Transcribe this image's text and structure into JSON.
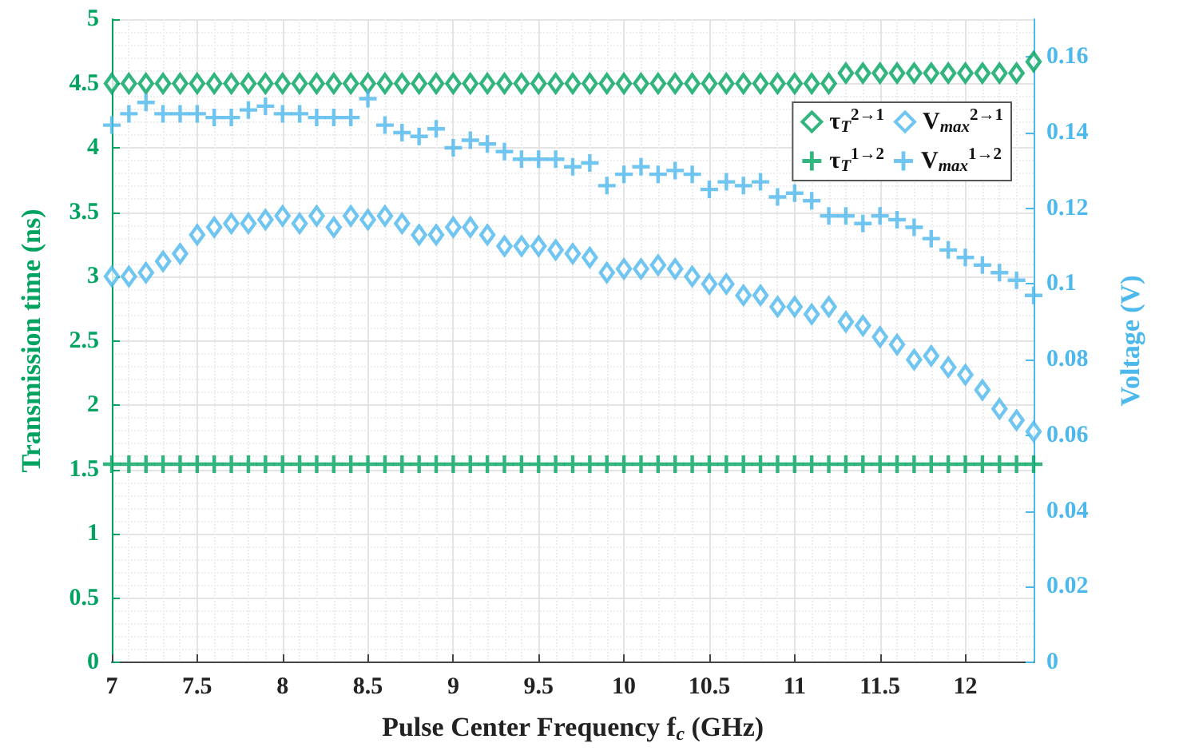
{
  "chart_data": {
    "type": "scatter",
    "xlabel": "Pulse Center Frequency f$_{c}$ (GHz)",
    "ylabel": "Transmission time (ns)",
    "y2label": "Voltage (V)",
    "x": [
      7.0,
      7.1,
      7.2,
      7.3,
      7.4,
      7.5,
      7.6,
      7.7,
      7.8,
      7.9,
      8.0,
      8.1,
      8.2,
      8.3,
      8.4,
      8.5,
      8.6,
      8.7,
      8.8,
      8.9,
      9.0,
      9.1,
      9.2,
      9.3,
      9.4,
      9.5,
      9.6,
      9.7,
      9.8,
      9.9,
      10.0,
      10.1,
      10.2,
      10.3,
      10.4,
      10.5,
      10.6,
      10.7,
      10.8,
      10.9,
      11.0,
      11.1,
      11.2,
      11.3,
      11.4,
      11.5,
      11.6,
      11.7,
      11.8,
      11.9,
      12.0,
      12.1,
      12.2,
      12.3,
      12.4
    ],
    "xlim": [
      7,
      12.4
    ],
    "xticks": [
      7,
      7.5,
      8,
      8.5,
      9,
      9.5,
      10,
      10.5,
      11,
      11.5,
      12
    ],
    "ylim": [
      0,
      5
    ],
    "yticks": [
      0,
      0.5,
      1,
      1.5,
      2,
      2.5,
      3,
      3.5,
      4,
      4.5,
      5
    ],
    "y2lim": [
      0,
      0.17
    ],
    "y2ticks": [
      0,
      0.02,
      0.04,
      0.06,
      0.08,
      0.1,
      0.12,
      0.14,
      0.16
    ],
    "grid": true,
    "legend": "top right",
    "series": [
      {
        "name": "τ$_{T}$$^{2→1}$",
        "color": "#00a360",
        "marker": "diamond",
        "values": [
          4.5,
          4.5,
          4.5,
          4.5,
          4.5,
          4.5,
          4.5,
          4.5,
          4.5,
          4.5,
          4.5,
          4.5,
          4.5,
          4.5,
          4.5,
          4.5,
          4.5,
          4.5,
          4.5,
          4.5,
          4.5,
          4.5,
          4.5,
          4.5,
          4.5,
          4.5,
          4.5,
          4.5,
          4.5,
          4.5,
          4.5,
          4.5,
          4.5,
          4.5,
          4.5,
          4.5,
          4.5,
          4.5,
          4.5,
          4.5,
          4.5,
          4.5,
          4.5,
          4.58,
          4.58,
          4.58,
          4.58,
          4.58,
          4.58,
          4.58,
          4.58,
          4.58,
          4.58,
          4.58,
          4.67
        ]
      },
      {
        "name": "V$_{max}$$^{2→1}$",
        "color": "#4cb8ec",
        "marker": "diamond",
        "axis": "y2",
        "values": [
          0.102,
          0.102,
          0.103,
          0.106,
          0.108,
          0.113,
          0.115,
          0.116,
          0.116,
          0.117,
          0.118,
          0.116,
          0.118,
          0.115,
          0.118,
          0.117,
          0.118,
          0.116,
          0.113,
          0.113,
          0.115,
          0.115,
          0.113,
          0.11,
          0.11,
          0.11,
          0.109,
          0.108,
          0.107,
          0.103,
          0.104,
          0.104,
          0.105,
          0.104,
          0.102,
          0.1,
          0.1,
          0.097,
          0.097,
          0.094,
          0.094,
          0.092,
          0.094,
          0.09,
          0.089,
          0.086,
          0.084,
          0.08,
          0.081,
          0.078,
          0.076,
          0.072,
          0.067,
          0.064,
          0.061
        ]
      },
      {
        "name": "τ$_{T}$$^{1→2}$",
        "color": "#00a360",
        "marker": "cross",
        "values": [
          1.54,
          1.54,
          1.54,
          1.54,
          1.54,
          1.54,
          1.54,
          1.54,
          1.54,
          1.54,
          1.54,
          1.54,
          1.54,
          1.54,
          1.54,
          1.54,
          1.54,
          1.54,
          1.54,
          1.54,
          1.54,
          1.54,
          1.54,
          1.54,
          1.54,
          1.54,
          1.54,
          1.54,
          1.54,
          1.54,
          1.54,
          1.54,
          1.54,
          1.54,
          1.54,
          1.54,
          1.54,
          1.54,
          1.54,
          1.54,
          1.54,
          1.54,
          1.54,
          1.54,
          1.54,
          1.54,
          1.54,
          1.54,
          1.54,
          1.54,
          1.54,
          1.54,
          1.54,
          1.54,
          1.54
        ]
      },
      {
        "name": "V$_{max}$$^{1→2}$",
        "color": "#4cb8ec",
        "marker": "cross",
        "axis": "y2",
        "values": [
          0.142,
          0.145,
          0.148,
          0.145,
          0.145,
          0.145,
          0.144,
          0.144,
          0.146,
          0.147,
          0.145,
          0.145,
          0.144,
          0.144,
          0.144,
          0.149,
          0.142,
          0.14,
          0.139,
          0.141,
          0.136,
          0.138,
          0.137,
          0.135,
          0.133,
          0.133,
          0.133,
          0.131,
          0.132,
          0.126,
          0.129,
          0.131,
          0.129,
          0.13,
          0.129,
          0.125,
          0.127,
          0.126,
          0.127,
          0.123,
          0.124,
          0.122,
          0.118,
          0.118,
          0.116,
          0.118,
          0.117,
          0.115,
          0.112,
          0.109,
          0.107,
          0.105,
          0.103,
          0.101,
          0.097
        ]
      }
    ]
  }
}
